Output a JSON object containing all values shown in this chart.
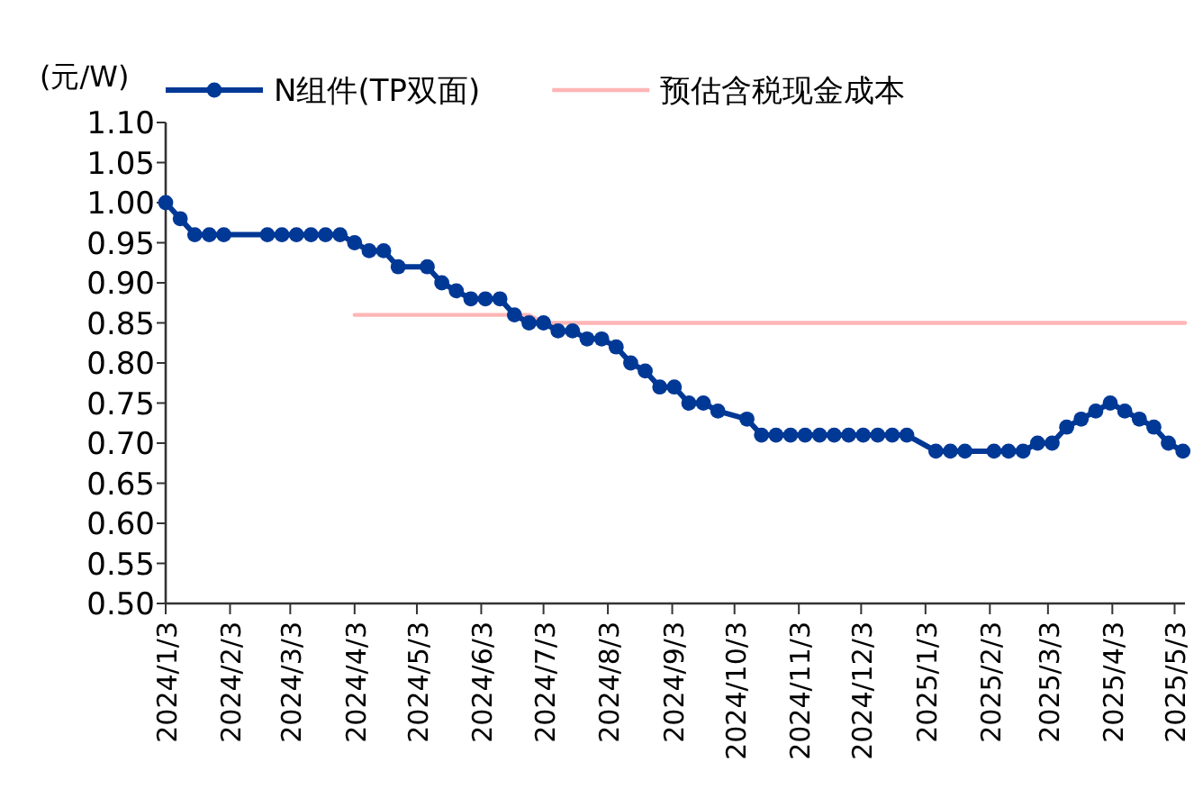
{
  "chart_data": {
    "type": "line",
    "ylabel": "(元/W)",
    "legend": "top",
    "grid": false,
    "xlim": [
      "2024-01-03",
      "2025-05-08"
    ],
    "ylim": [
      0.5,
      1.1
    ],
    "yticks": [
      {
        "value": 0.5,
        "label": "0.50"
      },
      {
        "value": 0.55,
        "label": "0.55"
      },
      {
        "value": 0.6,
        "label": "0.60"
      },
      {
        "value": 0.65,
        "label": "0.65"
      },
      {
        "value": 0.7,
        "label": "0.70"
      },
      {
        "value": 0.75,
        "label": "0.75"
      },
      {
        "value": 0.8,
        "label": "0.80"
      },
      {
        "value": 0.85,
        "label": "0.85"
      },
      {
        "value": 0.9,
        "label": "0.90"
      },
      {
        "value": 0.95,
        "label": "0.95"
      },
      {
        "value": 1.0,
        "label": "1.00"
      },
      {
        "value": 1.05,
        "label": "1.05"
      },
      {
        "value": 1.1,
        "label": "1.10"
      }
    ],
    "xticks": [
      {
        "value": "2024-01-03",
        "label": "2024/1/3"
      },
      {
        "value": "2024-02-03",
        "label": "2024/2/3"
      },
      {
        "value": "2024-03-03",
        "label": "2024/3/3"
      },
      {
        "value": "2024-04-03",
        "label": "2024/4/3"
      },
      {
        "value": "2024-05-03",
        "label": "2024/5/3"
      },
      {
        "value": "2024-06-03",
        "label": "2024/6/3"
      },
      {
        "value": "2024-07-03",
        "label": "2024/7/3"
      },
      {
        "value": "2024-08-03",
        "label": "2024/8/3"
      },
      {
        "value": "2024-09-03",
        "label": "2024/9/3"
      },
      {
        "value": "2024-10-03",
        "label": "2024/10/3"
      },
      {
        "value": "2024-11-03",
        "label": "2024/11/3"
      },
      {
        "value": "2024-12-03",
        "label": "2024/12/3"
      },
      {
        "value": "2025-01-03",
        "label": "2025/1/3"
      },
      {
        "value": "2025-02-03",
        "label": "2025/2/3"
      },
      {
        "value": "2025-03-03",
        "label": "2025/3/3"
      },
      {
        "value": "2025-04-03",
        "label": "2025/4/3"
      },
      {
        "value": "2025-05-03",
        "label": "2025/5/3"
      }
    ],
    "series": [
      {
        "name": "N组件(TP双面)",
        "color": "#003896",
        "marker": "circle",
        "line_style": "solid",
        "x": [
          "2024-01-03",
          "2024-01-10",
          "2024-01-17",
          "2024-01-24",
          "2024-01-31",
          "2024-02-21",
          "2024-02-28",
          "2024-03-06",
          "2024-03-13",
          "2024-03-20",
          "2024-03-27",
          "2024-04-03",
          "2024-04-10",
          "2024-04-17",
          "2024-04-24",
          "2024-05-08",
          "2024-05-15",
          "2024-05-22",
          "2024-05-29",
          "2024-06-05",
          "2024-06-12",
          "2024-06-19",
          "2024-06-26",
          "2024-07-03",
          "2024-07-10",
          "2024-07-17",
          "2024-07-24",
          "2024-07-31",
          "2024-08-07",
          "2024-08-14",
          "2024-08-21",
          "2024-08-28",
          "2024-09-04",
          "2024-09-11",
          "2024-09-18",
          "2024-09-25",
          "2024-10-09",
          "2024-10-16",
          "2024-10-23",
          "2024-10-30",
          "2024-11-06",
          "2024-11-13",
          "2024-11-20",
          "2024-11-27",
          "2024-12-04",
          "2024-12-11",
          "2024-12-18",
          "2024-12-25",
          "2025-01-08",
          "2025-01-15",
          "2025-01-22",
          "2025-02-05",
          "2025-02-12",
          "2025-02-19",
          "2025-02-26",
          "2025-03-05",
          "2025-03-12",
          "2025-03-19",
          "2025-03-26",
          "2025-04-02",
          "2025-04-09",
          "2025-04-16",
          "2025-04-23",
          "2025-04-30",
          "2025-05-07"
        ],
        "values": [
          1.0,
          0.98,
          0.96,
          0.96,
          0.96,
          0.96,
          0.96,
          0.96,
          0.96,
          0.96,
          0.96,
          0.95,
          0.94,
          0.94,
          0.92,
          0.92,
          0.9,
          0.89,
          0.88,
          0.88,
          0.88,
          0.86,
          0.85,
          0.85,
          0.84,
          0.84,
          0.83,
          0.83,
          0.82,
          0.8,
          0.79,
          0.77,
          0.77,
          0.75,
          0.75,
          0.74,
          0.73,
          0.71,
          0.71,
          0.71,
          0.71,
          0.71,
          0.71,
          0.71,
          0.71,
          0.71,
          0.71,
          0.71,
          0.69,
          0.69,
          0.69,
          0.69,
          0.69,
          0.69,
          0.7,
          0.7,
          0.72,
          0.73,
          0.74,
          0.75,
          0.74,
          0.73,
          0.72,
          0.7,
          0.69
        ]
      },
      {
        "name": "预估含税现金成本",
        "color": "#ffb6b6",
        "marker": "none",
        "line_style": "solid",
        "x": [
          "2024-04-03",
          "2024-06-26",
          "2024-07-03",
          "2025-05-08"
        ],
        "values": [
          0.86,
          0.86,
          0.85,
          0.85
        ]
      }
    ]
  }
}
